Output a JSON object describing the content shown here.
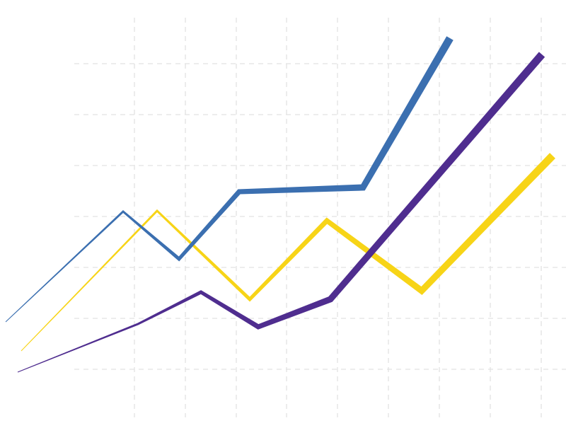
{
  "chart_data": {
    "type": "line",
    "xlim": [
      0,
      800
    ],
    "ylim": [
      0,
      605
    ],
    "xticks": [
      190,
      262,
      334,
      405,
      477,
      549,
      621,
      693,
      765
    ],
    "yticks": [
      83,
      155,
      227,
      299,
      371,
      443,
      515
    ],
    "grid": true,
    "series": [
      {
        "color": "#f7d417",
        "x": [
          30,
          222,
          353,
          462,
          596,
          781
        ],
        "values": [
          109,
          307,
          182,
          293,
          194,
          385
        ]
      },
      {
        "color": "#3b6fb0",
        "x": [
          8,
          174,
          253,
          338,
          513,
          636
        ],
        "values": [
          150,
          306,
          239,
          334,
          340,
          551
        ]
      },
      {
        "color": "#4f2d8f",
        "x": [
          25,
          195,
          284,
          365,
          467,
          766
        ],
        "values": [
          79,
          147,
          192,
          143,
          182,
          528
        ]
      }
    ]
  }
}
